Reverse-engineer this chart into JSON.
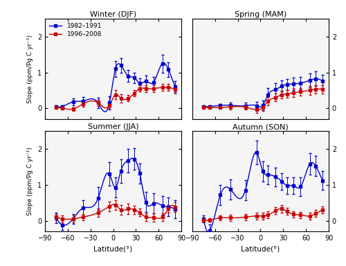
{
  "seasons": [
    "Winter (DJF)",
    "Spring (MAM)",
    "Summer (JJA)",
    "Autumn (SON)"
  ],
  "blue_color": "#0000CC",
  "red_color": "#CC0000",
  "ylabel": "Slope (ppm/Pg C yr⁻¹)",
  "xlabel": "Latitude(°)",
  "ylim": [
    -0.3,
    2.5
  ],
  "yticks": [
    0,
    1,
    2
  ],
  "xticks": [
    -90,
    -60,
    -30,
    0,
    30,
    60,
    90
  ],
  "blue_x": [
    -75,
    -67,
    -53,
    -40,
    -20,
    -5,
    3,
    10,
    20,
    28,
    35,
    43,
    53,
    65,
    73,
    82
  ],
  "red_x": [
    -75,
    -67,
    -53,
    -40,
    -20,
    -5,
    3,
    10,
    20,
    28,
    35,
    43,
    53,
    65,
    73,
    82
  ],
  "winter_blue_y": [
    0.05,
    0.05,
    0.18,
    0.2,
    0.15,
    0.15,
    1.1,
    1.2,
    0.9,
    0.85,
    0.7,
    0.75,
    0.72,
    1.25,
    1.08,
    0.6
  ],
  "winter_blue_err": [
    0.04,
    0.04,
    0.1,
    0.12,
    0.15,
    0.18,
    0.22,
    0.2,
    0.16,
    0.14,
    0.14,
    0.16,
    0.16,
    0.25,
    0.2,
    0.16
  ],
  "winter_red_y": [
    0.02,
    0.0,
    -0.02,
    0.12,
    0.15,
    0.08,
    0.38,
    0.28,
    0.28,
    0.42,
    0.55,
    0.55,
    0.55,
    0.58,
    0.58,
    0.52
  ],
  "winter_red_err": [
    0.04,
    0.04,
    0.05,
    0.07,
    0.08,
    0.08,
    0.13,
    0.12,
    0.09,
    0.09,
    0.09,
    0.1,
    0.1,
    0.1,
    0.1,
    0.1
  ],
  "spring_blue_y": [
    0.05,
    0.05,
    0.08,
    0.08,
    0.07,
    0.07,
    0.08,
    0.38,
    0.52,
    0.62,
    0.66,
    0.68,
    0.7,
    0.78,
    0.82,
    0.75
  ],
  "spring_blue_err": [
    0.04,
    0.04,
    0.05,
    0.07,
    0.09,
    0.11,
    0.14,
    0.18,
    0.18,
    0.16,
    0.16,
    0.17,
    0.18,
    0.2,
    0.2,
    0.18
  ],
  "spring_red_y": [
    0.02,
    0.02,
    0.02,
    0.04,
    0.03,
    -0.04,
    0.02,
    0.2,
    0.3,
    0.38,
    0.4,
    0.43,
    0.46,
    0.5,
    0.53,
    0.53
  ],
  "spring_red_err": [
    0.04,
    0.04,
    0.04,
    0.07,
    0.07,
    0.09,
    0.09,
    0.11,
    0.11,
    0.11,
    0.11,
    0.11,
    0.11,
    0.12,
    0.12,
    0.12
  ],
  "summer_blue_y": [
    0.08,
    -0.12,
    0.05,
    0.35,
    0.62,
    1.3,
    0.92,
    1.38,
    1.68,
    1.72,
    1.32,
    0.52,
    0.48,
    0.42,
    0.38,
    0.32
  ],
  "summer_blue_err": [
    0.14,
    0.14,
    0.14,
    0.23,
    0.32,
    0.33,
    0.28,
    0.33,
    0.33,
    0.3,
    0.28,
    0.28,
    0.28,
    0.26,
    0.26,
    0.26
  ],
  "summer_red_y": [
    0.1,
    0.05,
    0.05,
    0.1,
    0.22,
    0.4,
    0.44,
    0.3,
    0.33,
    0.3,
    0.23,
    0.1,
    0.09,
    0.1,
    0.33,
    0.38
  ],
  "summer_red_err": [
    0.09,
    0.09,
    0.09,
    0.09,
    0.11,
    0.14,
    0.14,
    0.14,
    0.14,
    0.11,
    0.11,
    0.11,
    0.11,
    0.11,
    0.11,
    0.13
  ],
  "autumn_blue_y": [
    0.05,
    -0.28,
    0.72,
    0.88,
    0.85,
    1.9,
    1.38,
    1.28,
    1.22,
    1.1,
    0.98,
    0.98,
    0.95,
    1.58,
    1.52,
    1.12
  ],
  "autumn_blue_err": [
    0.09,
    0.18,
    0.28,
    0.28,
    0.28,
    0.33,
    0.28,
    0.26,
    0.26,
    0.23,
    0.23,
    0.23,
    0.26,
    0.3,
    0.28,
    0.26
  ],
  "autumn_red_y": [
    0.02,
    0.02,
    0.08,
    0.08,
    0.1,
    0.13,
    0.13,
    0.16,
    0.28,
    0.33,
    0.26,
    0.18,
    0.16,
    0.13,
    0.2,
    0.3
  ],
  "autumn_red_err": [
    0.04,
    0.04,
    0.07,
    0.08,
    0.08,
    0.1,
    0.1,
    0.1,
    0.1,
    0.1,
    0.09,
    0.09,
    0.09,
    0.1,
    0.1,
    0.1
  ]
}
